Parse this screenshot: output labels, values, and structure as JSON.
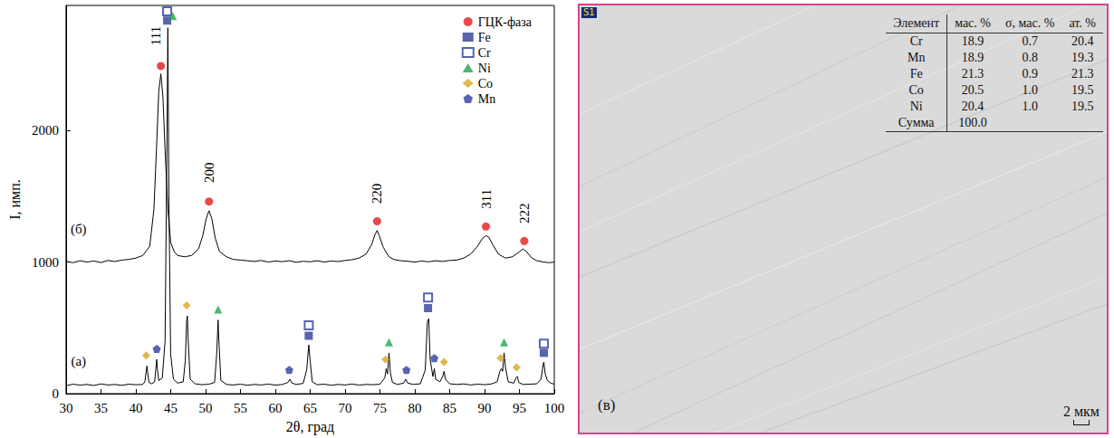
{
  "chart_data": {
    "type": "line",
    "xlabel": "2θ, град",
    "ylabel": "I, имп.",
    "xlim": [
      30,
      100
    ],
    "xticks": [
      30,
      35,
      40,
      45,
      50,
      55,
      60,
      65,
      70,
      75,
      80,
      85,
      90,
      95,
      100
    ],
    "ylim": [
      0,
      2950
    ],
    "yticks": [
      0,
      1000,
      2000
    ],
    "grid": false,
    "legend": "upper right",
    "series": [
      {
        "label": "(а)",
        "label_x": 31.8,
        "label_y": 250,
        "type": "line",
        "color": "#000000",
        "x": [
          30,
          31,
          32,
          33,
          34,
          35,
          36,
          37,
          38,
          39,
          40,
          41,
          41.3,
          41.5,
          41.6,
          41.7,
          41.9,
          42.3,
          42.7,
          42.9,
          43.0,
          43.1,
          43.3,
          43.8,
          44.2,
          44.45,
          44.6,
          44.75,
          45.0,
          45.4,
          46,
          46.8,
          47.1,
          47.3,
          47.4,
          47.5,
          47.8,
          48.5,
          49.5,
          50.5,
          51.3,
          51.6,
          51.8,
          51.9,
          52.2,
          53,
          54,
          55,
          56,
          57,
          58,
          59,
          60,
          61,
          61.8,
          62.1,
          62.4,
          63,
          64,
          64.5,
          64.8,
          65.0,
          65.3,
          66,
          67,
          68,
          69,
          70,
          71,
          72,
          73,
          74,
          75,
          75.7,
          75.9,
          76.1,
          76.3,
          76.5,
          76.8,
          77.5,
          78.4,
          78.7,
          79.0,
          79.8,
          80.8,
          81.5,
          81.8,
          82.0,
          82.2,
          82.6,
          82.8,
          83.0,
          83.6,
          84.0,
          84.2,
          84.4,
          85,
          86,
          87,
          88,
          89,
          90,
          91,
          91.8,
          92.2,
          92.4,
          92.6,
          92.8,
          93.0,
          93.4,
          94.2,
          94.5,
          94.7,
          94.9,
          95.5,
          96.5,
          97.5,
          98.1,
          98.4,
          98.5,
          98.7,
          99,
          99.5,
          100
        ],
        "values": [
          60,
          72,
          65,
          70,
          62,
          74,
          66,
          70,
          63,
          72,
          68,
          70,
          90,
          170,
          210,
          160,
          85,
          75,
          90,
          200,
          260,
          190,
          100,
          120,
          400,
          1800,
          2780,
          1500,
          300,
          110,
          80,
          90,
          250,
          560,
          590,
          420,
          110,
          75,
          68,
          72,
          85,
          300,
          560,
          420,
          100,
          70,
          66,
          72,
          64,
          70,
          66,
          73,
          65,
          70,
          85,
          110,
          80,
          70,
          78,
          180,
          370,
          250,
          90,
          68,
          72,
          64,
          70,
          66,
          73,
          65,
          70,
          68,
          72,
          120,
          190,
          150,
          310,
          160,
          85,
          70,
          80,
          110,
          80,
          70,
          75,
          180,
          540,
          570,
          260,
          130,
          190,
          110,
          90,
          130,
          170,
          110,
          75,
          70,
          74,
          66,
          72,
          68,
          74,
          90,
          170,
          190,
          170,
          310,
          200,
          90,
          80,
          120,
          130,
          85,
          70,
          72,
          75,
          110,
          220,
          240,
          150,
          100,
          80,
          72
        ]
      },
      {
        "label": "(б)",
        "label_x": 31.8,
        "label_y": 1250,
        "type": "line",
        "color": "#000000",
        "x": [
          30,
          31,
          32,
          33,
          34,
          35,
          36,
          37,
          38,
          39,
          40,
          41,
          42,
          42.6,
          43.0,
          43.3,
          43.6,
          43.9,
          44.2,
          44.6,
          45.0,
          45.5,
          46,
          47,
          48,
          49,
          49.6,
          50.1,
          50.5,
          50.9,
          51.4,
          52,
          53,
          54,
          55,
          56,
          57,
          58,
          59,
          60,
          61,
          62,
          63,
          64,
          65,
          66,
          67,
          68,
          69,
          70,
          71,
          72,
          73,
          73.8,
          74.3,
          74.6,
          74.9,
          75.5,
          76.3,
          77,
          78,
          79,
          80,
          81,
          82,
          83,
          84,
          85,
          86,
          87,
          88,
          89,
          89.7,
          90.2,
          90.6,
          91.2,
          92,
          93,
          94,
          94.8,
          95.5,
          96,
          96.8,
          97.5,
          98.5,
          99.3,
          100
        ],
        "values": [
          1005,
          995,
          1010,
          1000,
          1008,
          996,
          1012,
          1004,
          1015,
          1020,
          1030,
          1050,
          1120,
          1400,
          1900,
          2300,
          2430,
          2250,
          1850,
          1400,
          1150,
          1080,
          1050,
          1040,
          1050,
          1100,
          1200,
          1330,
          1390,
          1330,
          1180,
          1080,
          1040,
          1020,
          1015,
          1010,
          1005,
          1012,
          1000,
          1008,
          1003,
          1010,
          998,
          1006,
          1002,
          1010,
          1000,
          1008,
          1004,
          1012,
          1018,
          1030,
          1060,
          1130,
          1210,
          1240,
          1200,
          1110,
          1040,
          1020,
          1010,
          1006,
          1000,
          1008,
          1002,
          1010,
          1005,
          1012,
          1015,
          1030,
          1060,
          1120,
          1180,
          1200,
          1190,
          1130,
          1060,
          1030,
          1040,
          1070,
          1100,
          1080,
          1030,
          1010,
          1000,
          995,
          1000
        ]
      },
      {
        "name": "ГЦК-фаза",
        "type": "scatter",
        "marker": "circle",
        "color": "#e31a1c",
        "x": [
          43.6,
          50.5,
          74.6,
          90.2,
          95.7
        ],
        "values": [
          2490,
          1460,
          1310,
          1270,
          1160
        ]
      },
      {
        "name": "Fe",
        "type": "scatter",
        "marker": "square",
        "color": "#2e3d98",
        "x": [
          44.5,
          64.8,
          81.9,
          98.5
        ],
        "values": [
          2835,
          440,
          650,
          310
        ]
      },
      {
        "name": "Cr",
        "type": "scatter",
        "marker": "square_open",
        "color": "#2e3d98",
        "x": [
          44.5,
          64.8,
          81.9,
          98.5
        ],
        "values": [
          2905,
          520,
          730,
          380
        ]
      },
      {
        "name": "Ni",
        "type": "scatter",
        "marker": "triangle",
        "color": "#1ea54e",
        "x": [
          45.3,
          51.8,
          76.3,
          92.8
        ],
        "values": [
          2870,
          640,
          390,
          390
        ]
      },
      {
        "name": "Co",
        "type": "scatter",
        "marker": "diamond",
        "color": "#d9a520",
        "x": [
          41.5,
          47.3,
          75.8,
          84.2,
          92.3,
          94.6
        ],
        "values": [
          290,
          670,
          260,
          240,
          270,
          200
        ]
      },
      {
        "name": "Mn",
        "type": "scatter",
        "marker": "pentagon",
        "color": "#2e3d98",
        "x": [
          43.0,
          62.0,
          78.8,
          82.8
        ],
        "values": [
          340,
          180,
          180,
          270
        ]
      }
    ],
    "peak_labels": [
      {
        "text": "111",
        "x": 42.9,
        "y": 2720
      },
      {
        "text": "200",
        "x": 50.5,
        "y": 1680
      },
      {
        "text": "220",
        "x": 74.6,
        "y": 1520
      },
      {
        "text": "311",
        "x": 90.2,
        "y": 1480
      },
      {
        "text": "222",
        "x": 95.7,
        "y": 1370
      }
    ]
  },
  "image_panel": {
    "spectrum": "S1",
    "letter": "(в)",
    "scale_bar": "2 мкм",
    "table": {
      "header": [
        "Элемент",
        "мас. %",
        "σ, мас. %",
        "ат. %"
      ],
      "rows": [
        [
          "Cr",
          "18.9",
          "0.7",
          "20.4"
        ],
        [
          "Mn",
          "18.9",
          "0.8",
          "19.3"
        ],
        [
          "Fe",
          "21.3",
          "0.9",
          "21.3"
        ],
        [
          "Co",
          "20.5",
          "1.0",
          "19.5"
        ],
        [
          "Ni",
          "20.4",
          "1.0",
          "19.5"
        ],
        [
          "Сумма",
          "100.0"
        ]
      ]
    }
  }
}
